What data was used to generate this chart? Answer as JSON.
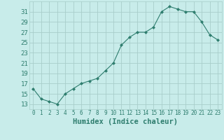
{
  "x": [
    0,
    1,
    2,
    3,
    4,
    5,
    6,
    7,
    8,
    9,
    10,
    11,
    12,
    13,
    14,
    15,
    16,
    17,
    18,
    19,
    20,
    21,
    22,
    23
  ],
  "y": [
    16,
    14,
    13.5,
    13,
    15,
    16,
    17,
    17.5,
    18,
    19.5,
    21,
    24.5,
    26,
    27,
    27,
    28,
    31,
    32,
    31.5,
    31,
    31,
    29,
    26.5,
    25.5
  ],
  "line_color": "#2e7d6e",
  "marker": "D",
  "marker_size": 2.0,
  "marker_lw": 0.5,
  "line_width": 0.8,
  "bg_color": "#c8ecea",
  "grid_color": "#a8ceca",
  "xlabel": "Humidex (Indice chaleur)",
  "xlim": [
    -0.5,
    23.5
  ],
  "ylim": [
    12,
    33
  ],
  "yticks": [
    13,
    15,
    17,
    19,
    21,
    23,
    25,
    27,
    29,
    31
  ],
  "xticks": [
    0,
    1,
    2,
    3,
    4,
    5,
    6,
    7,
    8,
    9,
    10,
    11,
    12,
    13,
    14,
    15,
    16,
    17,
    18,
    19,
    20,
    21,
    22,
    23
  ],
  "tick_color": "#2e7d6e",
  "label_color": "#2e7d6e",
  "xlabel_fontsize": 7.5,
  "ytick_fontsize": 6.5,
  "xtick_fontsize": 5.5
}
